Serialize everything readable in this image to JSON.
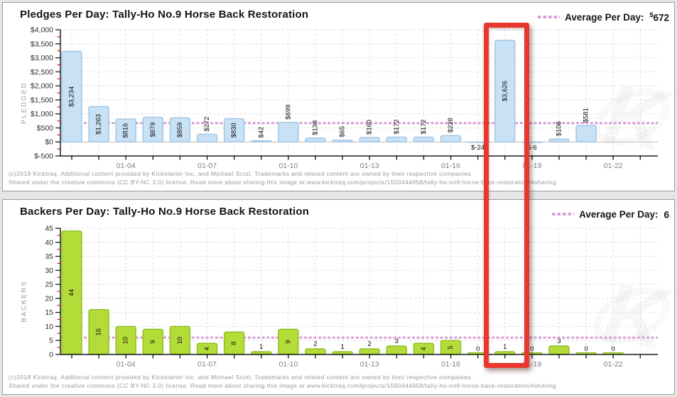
{
  "colors": {
    "pledges_bar_fill": "#c9e1f5",
    "pledges_bar_stroke": "#9fc4e4",
    "backers_bar_fill": "#b4dc38",
    "backers_bar_stroke": "#8cbd20",
    "average_line": "#d99ed9",
    "highlight_box": "#e8382d",
    "axis": "#1b1b1b",
    "minor_tick": "#cc2200",
    "grid": "#dedede",
    "zero_line": "#c8c8c8",
    "panel_background": "#ffffff",
    "page_background": "#e6e6e6"
  },
  "footer": {
    "line1": "(c)2018 Kicktraq. Additional content provided by Kickstarter Inc. and Michael Scott. Trademarks and related content are owned by their respective companies.",
    "line2": "Shared under the creative commons (CC BY-NC 3.0) license. Read more about sharing this image at www.kicktraq.com/projects/1500444958/tally-ho-no9-horse-back-restoration/#sharing"
  },
  "highlight": {
    "note": "red annotation rectangle drawn around the 01-18 bars in both charts"
  },
  "chart_data": [
    {
      "type": "bar",
      "title": "Pledges Per Day: Tally-Ho No.9 Horse Back Restoration",
      "ylabel": "PLEDGED",
      "xlabel": "",
      "categories": [
        "01-02",
        "01-03",
        "01-04",
        "01-05",
        "01-06",
        "01-07",
        "01-08",
        "01-09",
        "01-10",
        "01-11",
        "01-12",
        "01-13",
        "01-14",
        "01-15",
        "01-16",
        "01-17",
        "01-18",
        "01-19",
        "01-20",
        "01-21",
        "01-22",
        "01-23"
      ],
      "values": [
        3234,
        1263,
        816,
        879,
        859,
        272,
        830,
        42,
        699,
        138,
        65,
        160,
        172,
        172,
        228,
        -24,
        3626,
        -6,
        106,
        581,
        null,
        null
      ],
      "bar_labels": [
        "$3,234",
        "$1,263",
        "$816",
        "$879",
        "$859",
        "$272",
        "$830",
        "$42",
        "$699",
        "$138",
        "$65",
        "$160",
        "$172",
        "$172",
        "$228",
        "$-24",
        "$3,626",
        "$-6",
        "$106",
        "$581",
        null,
        null
      ],
      "x_tick_labels": [
        "01-04",
        "01-07",
        "01-10",
        "01-13",
        "01-16",
        "01-19",
        "01-22"
      ],
      "ylim": [
        -500,
        4000
      ],
      "ytick_step": 500,
      "ytick_labels": [
        "$-500",
        "$0",
        "$500",
        "$1,000",
        "$1,500",
        "$2,000",
        "$2,500",
        "$3,000",
        "$3,500",
        "$4,000"
      ],
      "grid": true,
      "legend_position": "top-right",
      "rotate_above_labels": true,
      "average": {
        "value": 672,
        "label": "Average Per Day:",
        "prefix": "$",
        "display": "672"
      }
    },
    {
      "type": "bar",
      "title": "Backers Per Day: Tally-Ho No.9 Horse Back Restoration",
      "ylabel": "BACKERS",
      "xlabel": "",
      "categories": [
        "01-02",
        "01-03",
        "01-04",
        "01-05",
        "01-06",
        "01-07",
        "01-08",
        "01-09",
        "01-10",
        "01-11",
        "01-12",
        "01-13",
        "01-14",
        "01-15",
        "01-16",
        "01-17",
        "01-18",
        "01-19",
        "01-20",
        "01-21",
        "01-22",
        "01-23"
      ],
      "values": [
        44,
        16,
        10,
        9,
        10,
        4,
        8,
        1,
        9,
        2,
        1,
        2,
        3,
        4,
        5,
        0,
        1,
        0,
        3,
        0,
        0,
        null
      ],
      "bar_labels": [
        "44",
        "16",
        "10",
        "9",
        "10",
        "4",
        "8",
        "1",
        "9",
        "2",
        "1",
        "2",
        "3",
        "4",
        "5",
        "0",
        "1",
        "0",
        "3",
        "0",
        "0",
        null
      ],
      "x_tick_labels": [
        "01-04",
        "01-07",
        "01-10",
        "01-13",
        "01-16",
        "01-19",
        "01-22"
      ],
      "ylim": [
        0,
        45
      ],
      "ytick_step": 5,
      "ytick_labels": [
        "0",
        "5",
        "10",
        "15",
        "20",
        "25",
        "30",
        "35",
        "40",
        "45"
      ],
      "grid": true,
      "legend_position": "top-right",
      "rotate_above_labels": false,
      "average": {
        "value": 6,
        "label": "Average Per Day:",
        "prefix": "",
        "display": "6"
      }
    }
  ]
}
